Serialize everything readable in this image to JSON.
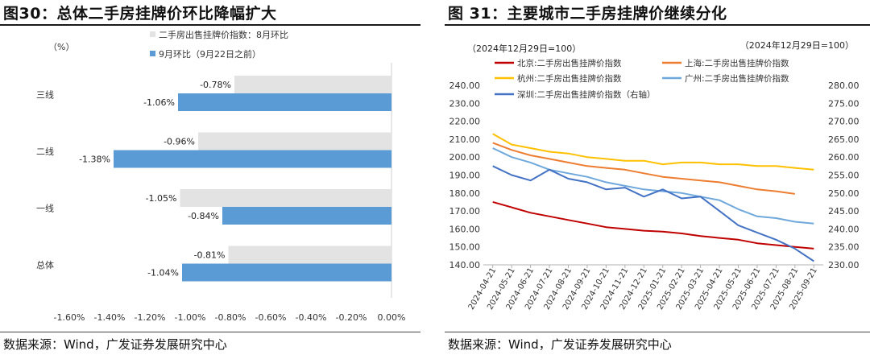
{
  "chart_data": [
    {
      "type": "bar",
      "orientation": "horizontal",
      "title": "图30：总体二手房挂牌价环比降幅扩大",
      "unit_label": "（%）",
      "categories": [
        "三线",
        "二线",
        "一线",
        "总体"
      ],
      "series": [
        {
          "name": "二手房出售挂牌价指数：8月环比",
          "values": [
            -0.78,
            -0.96,
            -1.05,
            -0.81
          ],
          "color": "#e3e3e3"
        },
        {
          "name": "9月环比（9月22日之前）",
          "values": [
            -1.06,
            -1.38,
            -0.84,
            -1.04
          ],
          "color": "#5b9bd5"
        }
      ],
      "data_labels": [
        [
          "-0.78%",
          "-1.06%"
        ],
        [
          "-0.96%",
          "-1.38%"
        ],
        [
          "-1.05%",
          "-0.84%"
        ],
        [
          "-0.81%",
          "-1.04%"
        ]
      ],
      "xlim": [
        -1.6,
        0
      ],
      "xticks": [
        -1.6,
        -1.4,
        -1.2,
        -1.0,
        -0.8,
        -0.6,
        -0.4,
        -0.2,
        0.0
      ],
      "xtick_labels": [
        "-1.60%",
        "-1.40%",
        "-1.20%",
        "-1.00%",
        "-0.80%",
        "-0.60%",
        "-0.40%",
        "-0.20%",
        "0.00%"
      ],
      "source": "数据来源：Wind，广发证券发展研究中心"
    },
    {
      "type": "line",
      "title": "图 31：主要城市二手房挂牌价继续分化",
      "left_axis_note": "（2024年12月29日=100）",
      "right_axis_note": "（2024年12月29日=100）",
      "x": [
        "2024-04-21",
        "2024-05-21",
        "2024-06-21",
        "2024-07-21",
        "2024-08-21",
        "2024-09-21",
        "2024-10-21",
        "2024-11-21",
        "2024-12-21",
        "2025-01-21",
        "2025-02-21",
        "2025-03-21",
        "2025-04-21",
        "2025-05-21",
        "2025-06-21",
        "2025-07-21",
        "2025-08-21",
        "2025-09-21"
      ],
      "ylim_left": [
        140,
        240
      ],
      "yticks_left": [
        140,
        150,
        160,
        170,
        180,
        190,
        200,
        210,
        220,
        230,
        240
      ],
      "ytick_labels_left": [
        "140.00",
        "150.00",
        "160.00",
        "170.00",
        "180.00",
        "190.00",
        "200.00",
        "210.00",
        "220.00",
        "230.00",
        "240.00"
      ],
      "ylim_right": [
        230,
        280
      ],
      "yticks_right": [
        230,
        235,
        240,
        245,
        250,
        255,
        260,
        265,
        270,
        275,
        280
      ],
      "ytick_labels_right": [
        "230.00",
        "235.00",
        "240.00",
        "245.00",
        "250.00",
        "255.00",
        "260.00",
        "265.00",
        "270.00",
        "275.00",
        "280.00"
      ],
      "series": [
        {
          "name": "北京:二手房出售挂牌价指数",
          "axis": "left",
          "color": "#c00000",
          "values": [
            175,
            172,
            169,
            167,
            165,
            163,
            161,
            160,
            159,
            158.5,
            157.5,
            156,
            155,
            154,
            152,
            151,
            150,
            149
          ]
        },
        {
          "name": "上海:二手房出售挂牌价指数",
          "axis": "left",
          "color": "#ed7d31",
          "values": [
            208,
            204,
            201,
            199,
            197,
            195,
            194,
            193,
            191,
            189,
            188,
            187,
            186,
            184,
            182,
            181,
            179.5,
            null
          ]
        },
        {
          "name": "杭州:二手房出售挂牌价指数",
          "axis": "left",
          "color": "#ffc000",
          "values": [
            213,
            207,
            205,
            203,
            202,
            200,
            199,
            198,
            198,
            196,
            197,
            197,
            196,
            196,
            195,
            195,
            194,
            193
          ]
        },
        {
          "name": "广州:二手房出售挂牌价指数",
          "axis": "left",
          "color": "#6fa8dc",
          "values": [
            205,
            200,
            197,
            193,
            191,
            189,
            186,
            184,
            182,
            181,
            180,
            178,
            176,
            171,
            167,
            166,
            164,
            163
          ]
        },
        {
          "name": "深圳:二手房出售挂牌价指数（右轴）",
          "axis": "right",
          "color": "#4472c4",
          "values": [
            257.5,
            255,
            253.5,
            256.5,
            254,
            253,
            251,
            251.5,
            249,
            251,
            248.5,
            249,
            245,
            241,
            239,
            237,
            234.5,
            231
          ]
        }
      ],
      "source": "数据来源：Wind，广发证券发展研究中心"
    }
  ]
}
